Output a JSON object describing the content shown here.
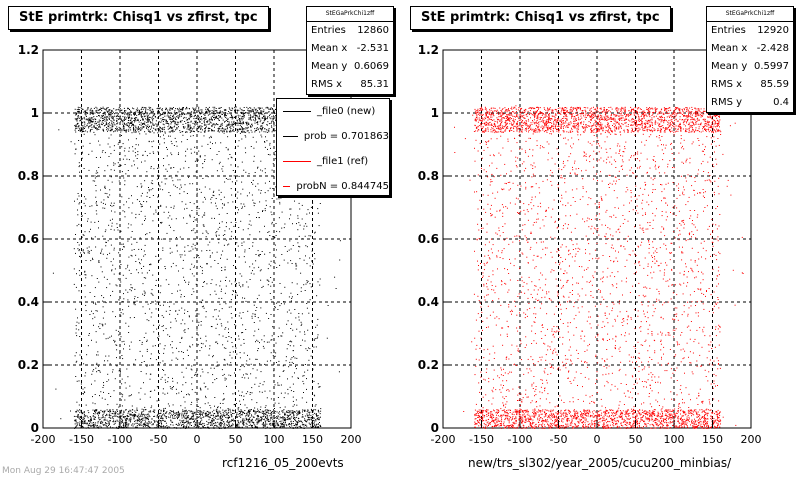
{
  "colors": {
    "new": "#000000",
    "ref": "#ff0000"
  },
  "footer_text": "Mon Aug 29 16:47:47 2005",
  "chart_data": [
    {
      "type": "scatter",
      "title": "StE primtrk: Chisq1 vs zfirst, tpc",
      "xlabel": "rcf1216_05_200evts",
      "xlim": [
        -200,
        200
      ],
      "ylim": [
        0,
        1.2
      ],
      "xticks": [
        "-200",
        "-150",
        "-100",
        "-50",
        "0",
        "50",
        "100",
        "150",
        "200"
      ],
      "yticks": [
        "0",
        "0.2",
        "0.4",
        "0.6",
        "0.8",
        "1",
        "1.2"
      ],
      "grid": true,
      "point_color": "#000000",
      "density": {
        "x_range": [
          -160,
          160
        ],
        "bands": [
          [
            0.94,
            1.02,
            0.22
          ],
          [
            0.0,
            0.06,
            0.18
          ]
        ]
      },
      "stats": {
        "name": "StEGaPrkChi1zff",
        "entries_label": "Entries",
        "entries": "12860",
        "meanx_label": "Mean x",
        "meanx": "-2.531",
        "meany_label": "Mean y",
        "meany": "0.6069",
        "rmsx_label": "RMS x",
        "rmsx": "85.31"
      },
      "legend": {
        "items": [
          {
            "label": "_file0 (new)",
            "color": "#000000"
          },
          {
            "label": "prob = 0.701863",
            "color": "#000000"
          },
          {
            "label": "_file1 (ref)",
            "color": "#ff0000"
          },
          {
            "label": "probN = 0.844745",
            "color": "#ff0000"
          }
        ]
      }
    },
    {
      "type": "scatter",
      "title": "StE primtrk: Chisq1 vs zfirst, tpc",
      "xlabel": "new/trs_sl302/year_2005/cucu200_minbias/",
      "xlim": [
        -200,
        200
      ],
      "ylim": [
        0,
        1.2
      ],
      "xticks": [
        "-200",
        "-150",
        "-100",
        "-50",
        "0",
        "50",
        "100",
        "150",
        "200"
      ],
      "yticks": [
        "0",
        "0.2",
        "0.4",
        "0.6",
        "0.8",
        "1",
        "1.2"
      ],
      "grid": true,
      "point_color": "#ff0000",
      "density": {
        "x_range": [
          -160,
          160
        ],
        "bands": [
          [
            0.94,
            1.02,
            0.22
          ],
          [
            0.0,
            0.06,
            0.18
          ]
        ]
      },
      "stats": {
        "name": "StEGaPrkChi1zff",
        "entries_label": "Entries",
        "entries": "12920",
        "meanx_label": "Mean x",
        "meanx": "-2.428",
        "meany_label": "Mean y",
        "meany": "0.5997",
        "rmsx_label": "RMS x",
        "rmsx": "85.59",
        "rmsy_label": "RMS y",
        "rmsy": "0.4"
      }
    }
  ]
}
